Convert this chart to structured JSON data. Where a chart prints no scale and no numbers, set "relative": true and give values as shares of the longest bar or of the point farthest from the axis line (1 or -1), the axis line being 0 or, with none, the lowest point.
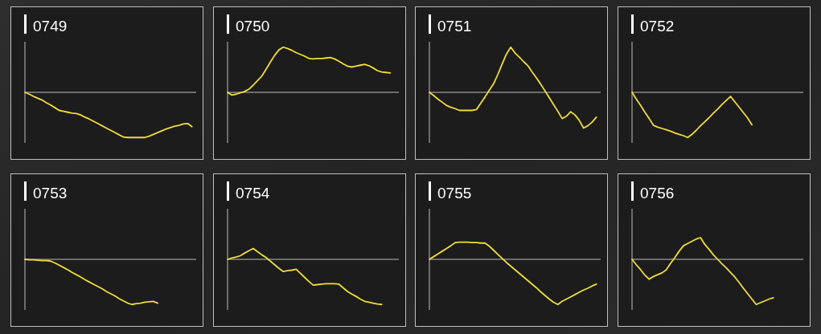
{
  "chart_data": [
    {
      "type": "line",
      "title": "0749",
      "relative": true,
      "color": "#f0dc3c",
      "categories": [
        null,
        null,
        null,
        null,
        null,
        null,
        null,
        null,
        null,
        null,
        null,
        null,
        null,
        null,
        null,
        null,
        null,
        null,
        null,
        null,
        null,
        null,
        null,
        null,
        null,
        null,
        null,
        null,
        null,
        null,
        null,
        null,
        null,
        null,
        null,
        null,
        null,
        null,
        null,
        null,
        null
      ],
      "values": [
        0,
        -0.04,
        -0.09,
        -0.13,
        -0.17,
        -0.23,
        -0.28,
        -0.34,
        -0.4,
        -0.42,
        -0.44,
        -0.46,
        -0.47,
        -0.5,
        -0.55,
        -0.59,
        -0.64,
        -0.69,
        -0.74,
        -0.79,
        -0.84,
        -0.89,
        -0.94,
        -0.99,
        -1,
        -1,
        -1,
        -1,
        -1,
        -0.97,
        -0.93,
        -0.89,
        -0.85,
        -0.81,
        -0.78,
        -0.75,
        -0.73,
        -0.7,
        -0.69,
        -0.76,
        null
      ]
    },
    {
      "type": "line",
      "title": "0750",
      "relative": true,
      "color": "#f0dc3c",
      "categories": [
        null,
        null,
        null,
        null,
        null,
        null,
        null,
        null,
        null,
        null,
        null,
        null,
        null,
        null,
        null,
        null,
        null,
        null,
        null,
        null,
        null,
        null,
        null,
        null,
        null,
        null,
        null,
        null,
        null,
        null,
        null,
        null,
        null,
        null,
        null,
        null,
        null,
        null,
        null,
        null,
        null
      ],
      "values": [
        0,
        -0.06,
        -0.04,
        -0.01,
        0.02,
        0.07,
        0.16,
        0.26,
        0.36,
        0.51,
        0.67,
        0.82,
        0.94,
        1,
        0.97,
        0.93,
        0.88,
        0.84,
        0.8,
        0.75,
        0.74,
        0.75,
        0.75,
        0.76,
        0.77,
        0.74,
        0.69,
        0.63,
        0.58,
        0.56,
        0.58,
        0.6,
        0.62,
        0.59,
        0.54,
        0.48,
        0.45,
        0.44,
        0.43,
        null,
        null
      ]
    },
    {
      "type": "line",
      "title": "0751",
      "relative": true,
      "color": "#f0dc3c",
      "categories": [
        null,
        null,
        null,
        null,
        null,
        null,
        null,
        null,
        null,
        null,
        null,
        null,
        null,
        null,
        null,
        null,
        null,
        null,
        null,
        null,
        null,
        null,
        null,
        null,
        null,
        null,
        null,
        null,
        null,
        null,
        null,
        null,
        null,
        null,
        null,
        null,
        null,
        null,
        null,
        null,
        null
      ],
      "values": [
        0,
        -0.07,
        -0.15,
        -0.22,
        -0.29,
        -0.33,
        -0.36,
        -0.4,
        -0.4,
        -0.4,
        -0.4,
        -0.38,
        -0.24,
        -0.1,
        0.05,
        0.19,
        0.4,
        0.63,
        0.85,
        1,
        0.87,
        0.78,
        0.68,
        0.59,
        0.45,
        0.32,
        0.18,
        0.03,
        -0.12,
        -0.27,
        -0.42,
        -0.58,
        -0.53,
        -0.43,
        -0.5,
        -0.62,
        -0.79,
        -0.74,
        -0.66,
        -0.55,
        null
      ]
    },
    {
      "type": "line",
      "title": "0752",
      "relative": true,
      "color": "#f0dc3c",
      "categories": [
        null,
        null,
        null,
        null,
        null,
        null,
        null,
        null,
        null,
        null,
        null,
        null,
        null,
        null,
        null,
        null,
        null,
        null,
        null,
        null,
        null,
        null,
        null,
        null,
        null,
        null,
        null,
        null,
        null,
        null,
        null,
        null,
        null,
        null,
        null,
        null,
        null,
        null,
        null,
        null,
        null
      ],
      "values": [
        0,
        -0.15,
        -0.29,
        -0.44,
        -0.58,
        -0.73,
        -0.77,
        -0.8,
        -0.83,
        -0.86,
        -0.9,
        -0.93,
        -0.96,
        -1,
        -0.93,
        -0.84,
        -0.74,
        -0.65,
        -0.56,
        -0.46,
        -0.37,
        -0.27,
        -0.18,
        -0.09,
        -0.21,
        -0.33,
        -0.45,
        -0.57,
        -0.72,
        null,
        null,
        null,
        null,
        null,
        null,
        null,
        null,
        null,
        null,
        null,
        null
      ]
    },
    {
      "type": "line",
      "title": "0753",
      "relative": true,
      "color": "#f0dc3c",
      "categories": [
        null,
        null,
        null,
        null,
        null,
        null,
        null,
        null,
        null,
        null,
        null,
        null,
        null,
        null,
        null,
        null,
        null,
        null,
        null,
        null,
        null,
        null,
        null,
        null,
        null,
        null,
        null,
        null,
        null,
        null,
        null,
        null,
        null,
        null,
        null,
        null,
        null,
        null,
        null,
        null,
        null
      ],
      "values": [
        0,
        -0.01,
        -0.01,
        -0.02,
        -0.03,
        -0.03,
        -0.04,
        -0.08,
        -0.13,
        -0.18,
        -0.23,
        -0.29,
        -0.34,
        -0.39,
        -0.45,
        -0.5,
        -0.55,
        -0.6,
        -0.65,
        -0.71,
        -0.76,
        -0.81,
        -0.87,
        -0.92,
        -0.97,
        -1,
        -0.98,
        -0.97,
        -0.95,
        -0.94,
        -0.93,
        -0.97,
        null,
        null,
        null,
        null,
        null,
        null,
        null,
        null,
        null
      ]
    },
    {
      "type": "line",
      "title": "0754",
      "relative": true,
      "color": "#f0dc3c",
      "categories": [
        null,
        null,
        null,
        null,
        null,
        null,
        null,
        null,
        null,
        null,
        null,
        null,
        null,
        null,
        null,
        null,
        null,
        null,
        null,
        null,
        null,
        null,
        null,
        null,
        null,
        null,
        null,
        null,
        null,
        null,
        null,
        null,
        null,
        null,
        null,
        null,
        null,
        null,
        null,
        null,
        null
      ],
      "values": [
        0,
        0.03,
        0.05,
        0.08,
        0.14,
        0.19,
        0.24,
        0.17,
        0.1,
        0.04,
        -0.04,
        -0.12,
        -0.2,
        -0.27,
        -0.25,
        -0.24,
        -0.22,
        -0.31,
        -0.4,
        -0.49,
        -0.57,
        -0.56,
        -0.55,
        -0.54,
        -0.54,
        -0.54,
        -0.55,
        -0.63,
        -0.71,
        -0.77,
        -0.82,
        -0.88,
        -0.93,
        -0.95,
        -0.97,
        -0.99,
        -1,
        null,
        null,
        null,
        null
      ]
    },
    {
      "type": "line",
      "title": "0755",
      "relative": true,
      "color": "#f0dc3c",
      "categories": [
        null,
        null,
        null,
        null,
        null,
        null,
        null,
        null,
        null,
        null,
        null,
        null,
        null,
        null,
        null,
        null,
        null,
        null,
        null,
        null,
        null,
        null,
        null,
        null,
        null,
        null,
        null,
        null,
        null,
        null,
        null,
        null,
        null,
        null,
        null,
        null,
        null,
        null,
        null,
        null,
        null
      ],
      "values": [
        0,
        0.06,
        0.12,
        0.18,
        0.24,
        0.3,
        0.37,
        0.38,
        0.38,
        0.38,
        0.37,
        0.37,
        0.36,
        0.36,
        0.29,
        0.2,
        0.11,
        0.02,
        -0.07,
        -0.15,
        -0.23,
        -0.31,
        -0.39,
        -0.47,
        -0.55,
        -0.63,
        -0.72,
        -0.8,
        -0.88,
        -0.95,
        -1,
        -0.93,
        -0.88,
        -0.83,
        -0.78,
        -0.73,
        -0.68,
        -0.64,
        -0.59,
        -0.55,
        null
      ]
    },
    {
      "type": "line",
      "title": "0756",
      "relative": true,
      "color": "#f0dc3c",
      "categories": [
        null,
        null,
        null,
        null,
        null,
        null,
        null,
        null,
        null,
        null,
        null,
        null,
        null,
        null,
        null,
        null,
        null,
        null,
        null,
        null,
        null,
        null,
        null,
        null,
        null,
        null,
        null,
        null,
        null,
        null,
        null,
        null,
        null,
        null,
        null,
        null,
        null,
        null,
        null,
        null,
        null
      ],
      "values": [
        0,
        -0.12,
        -0.23,
        -0.35,
        -0.44,
        -0.38,
        -0.34,
        -0.3,
        -0.23,
        -0.09,
        0.04,
        0.18,
        0.3,
        0.35,
        0.4,
        0.45,
        0.48,
        0.33,
        0.22,
        0.1,
        0,
        -0.1,
        -0.19,
        -0.29,
        -0.39,
        -0.51,
        -0.64,
        -0.76,
        -0.88,
        -1,
        -0.96,
        -0.92,
        -0.88,
        -0.85,
        null,
        null,
        null,
        null,
        null,
        null,
        null
      ]
    }
  ]
}
